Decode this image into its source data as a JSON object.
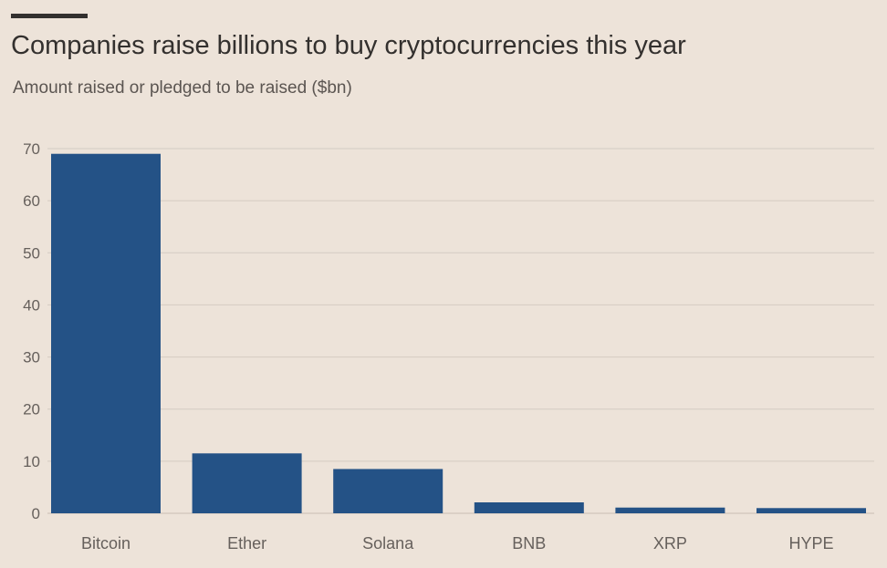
{
  "chart_data": {
    "type": "bar",
    "title": "Companies raise billions to buy cryptocurrencies this year",
    "subtitle": "Amount raised or pledged to be raised ($bn)",
    "categories": [
      "Bitcoin",
      "Ether",
      "Solana",
      "BNB",
      "XRP",
      "HYPE"
    ],
    "values": [
      69,
      11.5,
      8.5,
      2.1,
      1.1,
      1.0
    ],
    "ylim": [
      0,
      70
    ],
    "yticks": [
      0,
      10,
      20,
      30,
      40,
      50,
      60,
      70
    ],
    "ytick_labels": [
      "0",
      "10",
      "20",
      "30",
      "40",
      "50",
      "60",
      "70"
    ],
    "grid": true,
    "bar_color": "#245286",
    "grid_color": "#d4cbc2",
    "background_color": "#ede3d9"
  }
}
